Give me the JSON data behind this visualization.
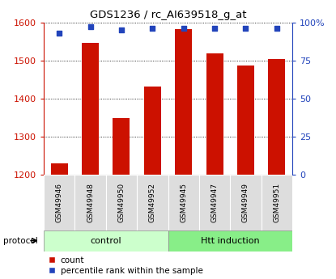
{
  "title": "GDS1236 / rc_AI639518_g_at",
  "samples": [
    "GSM49946",
    "GSM49948",
    "GSM49950",
    "GSM49952",
    "GSM49945",
    "GSM49947",
    "GSM49949",
    "GSM49951"
  ],
  "counts": [
    1228,
    1547,
    1348,
    1432,
    1583,
    1518,
    1487,
    1504
  ],
  "percentile_ranks": [
    93,
    97,
    95,
    96,
    96,
    96,
    96,
    96
  ],
  "groups": [
    {
      "label": "control",
      "indices": [
        0,
        3
      ],
      "color": "#ccffcc"
    },
    {
      "label": "Htt induction",
      "indices": [
        4,
        7
      ],
      "color": "#88ee88"
    }
  ],
  "ylim_left": [
    1200,
    1600
  ],
  "ylim_right": [
    0,
    100
  ],
  "yticks_left": [
    1200,
    1300,
    1400,
    1500,
    1600
  ],
  "yticks_right": [
    0,
    25,
    50,
    75,
    100
  ],
  "bar_color": "#cc1100",
  "dot_color": "#2244bb",
  "bar_width": 0.55,
  "left_axis_color": "#cc1100",
  "right_axis_color": "#2244bb",
  "grid_color": "#000000",
  "background_color": "#ffffff",
  "protocol_label": "protocol",
  "legend_items": [
    "count",
    "percentile rank within the sample"
  ],
  "sample_box_color": "#dddddd",
  "control_color": "#ccffcc",
  "htt_color": "#88ee88"
}
